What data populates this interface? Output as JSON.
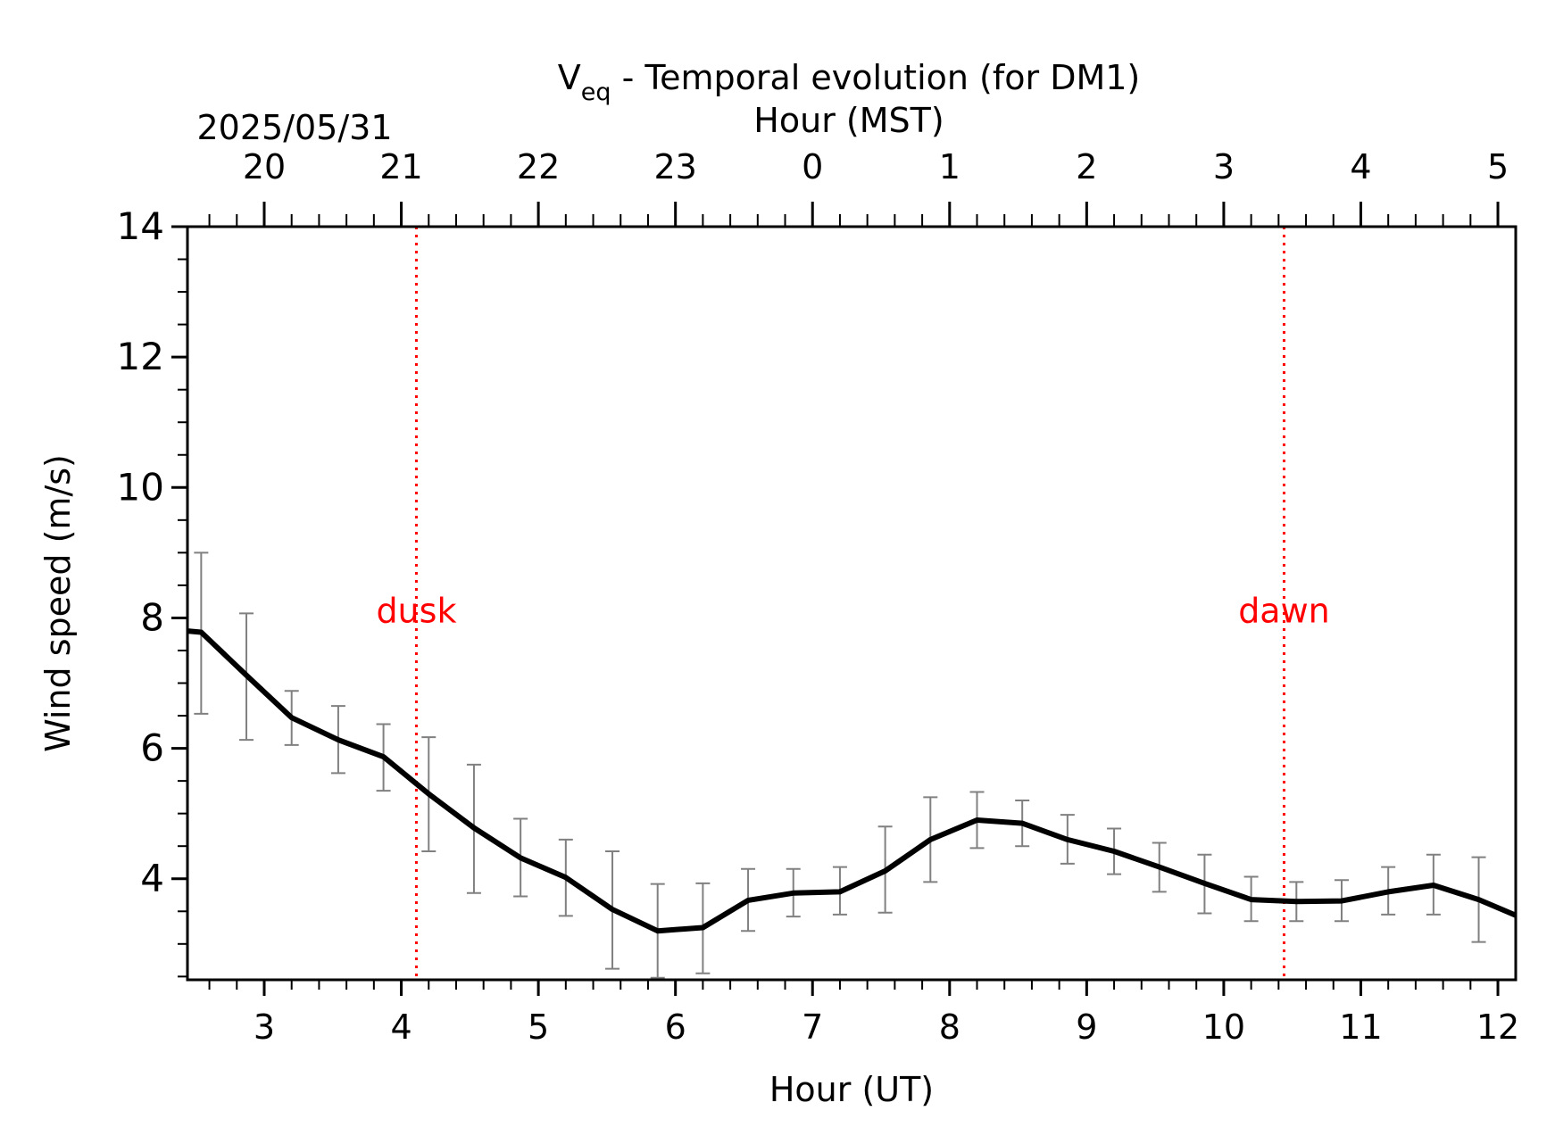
{
  "chart_data": {
    "type": "line",
    "title": "V",
    "title_subscript": "eq",
    "title_rest": " - Temporal evolution (for DM1)",
    "xlabel": "Hour (UT)",
    "ylabel": "Wind speed (m/s)",
    "top_axis_label": "Hour (MST)",
    "date_label": "2025/05/31",
    "xlim": [
      2.44,
      12.13
    ],
    "ylim": [
      2.45,
      14.0
    ],
    "x_ticks": [
      3,
      4,
      5,
      6,
      7,
      8,
      9,
      10,
      11,
      12
    ],
    "x_tick_labels": [
      "3",
      "4",
      "5",
      "6",
      "7",
      "8",
      "9",
      "10",
      "11",
      "12"
    ],
    "y_ticks": [
      4,
      6,
      8,
      10,
      12,
      14
    ],
    "y_tick_labels": [
      "4",
      "6",
      "8",
      "10",
      "12",
      "14"
    ],
    "top_ticks_ut": [
      3,
      4,
      5,
      6,
      7,
      8,
      9,
      10,
      11,
      12
    ],
    "top_tick_labels": [
      "20",
      "21",
      "22",
      "23",
      "0",
      "1",
      "2",
      "3",
      "4",
      "5"
    ],
    "colors": {
      "line": "#000000",
      "error_bars": "#808080",
      "markers": "#ff0000"
    },
    "series": [
      {
        "x": [
          2.44,
          2.54,
          2.87,
          3.2,
          3.54,
          3.87,
          4.2,
          4.53,
          4.87,
          5.2,
          5.54,
          5.87,
          6.2,
          6.53,
          6.86,
          7.2,
          7.53,
          7.86,
          8.2,
          8.53,
          8.86,
          9.2,
          9.53,
          9.86,
          10.2,
          10.53,
          10.86,
          11.2,
          11.53,
          11.86,
          12.13
        ],
        "y": [
          7.8,
          7.78,
          7.12,
          6.47,
          6.13,
          5.87,
          5.3,
          4.78,
          4.32,
          4.02,
          3.53,
          3.2,
          3.25,
          3.67,
          3.78,
          3.8,
          4.12,
          4.6,
          4.9,
          4.85,
          4.6,
          4.42,
          4.18,
          3.93,
          3.68,
          3.65,
          3.66,
          3.8,
          3.9,
          3.68,
          3.44
        ],
        "err_x": [
          2.54,
          2.87,
          3.2,
          3.54,
          3.87,
          4.2,
          4.53,
          4.87,
          5.2,
          5.54,
          5.87,
          6.2,
          6.53,
          6.86,
          7.2,
          7.53,
          7.86,
          8.2,
          8.53,
          8.86,
          9.2,
          9.53,
          9.86,
          10.2,
          10.53,
          10.86,
          11.2,
          11.53,
          11.86
        ],
        "err_low": [
          6.53,
          6.13,
          6.05,
          5.62,
          5.35,
          4.42,
          3.78,
          3.73,
          3.43,
          2.62,
          2.48,
          2.55,
          3.2,
          3.42,
          3.45,
          3.48,
          3.95,
          4.47,
          4.5,
          4.23,
          4.07,
          3.8,
          3.47,
          3.35,
          3.35,
          3.35,
          3.45,
          3.45,
          3.03
        ],
        "err_high": [
          9.0,
          8.07,
          6.88,
          6.65,
          6.37,
          6.17,
          5.75,
          4.92,
          4.6,
          4.42,
          3.92,
          3.93,
          4.15,
          4.15,
          4.18,
          4.8,
          5.25,
          5.33,
          5.2,
          4.98,
          4.77,
          4.55,
          4.37,
          4.03,
          3.95,
          3.98,
          4.18,
          4.37,
          4.33
        ]
      }
    ],
    "annotations": [
      {
        "x": 4.11,
        "label": "dusk"
      },
      {
        "x": 10.44,
        "label": "dawn"
      }
    ]
  }
}
